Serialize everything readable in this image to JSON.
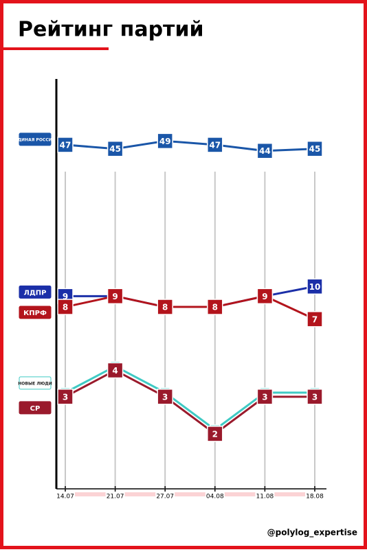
{
  "chart_data": {
    "type": "line",
    "title": "Рейтинг партий",
    "source": "@polylog_expertise",
    "categories": [
      "14.07",
      "21.07",
      "27.07",
      "04.08",
      "11.08",
      "18.08"
    ],
    "log_scale": true,
    "ylim": [
      1.2,
      80
    ],
    "series": [
      {
        "name": "ЕДИНАЯ РОССИЯ",
        "color": "#1a56a8",
        "values": [
          47,
          45,
          49,
          47,
          44,
          45
        ]
      },
      {
        "name": "ЛДПР",
        "color": "#1b2fa8",
        "values": [
          9,
          9,
          8,
          8,
          9,
          10
        ]
      },
      {
        "name": "КПРФ",
        "color": "#b3141c",
        "values": [
          8,
          9,
          8,
          8,
          9,
          7
        ]
      },
      {
        "name": "НОВЫЕ ЛЮДИ",
        "color": "#3fcac4",
        "values": [
          3,
          4,
          3,
          2,
          3,
          3
        ]
      },
      {
        "name": "СР",
        "color": "#9a1a2c",
        "values": [
          3,
          4,
          3,
          2,
          3,
          3
        ]
      }
    ]
  }
}
